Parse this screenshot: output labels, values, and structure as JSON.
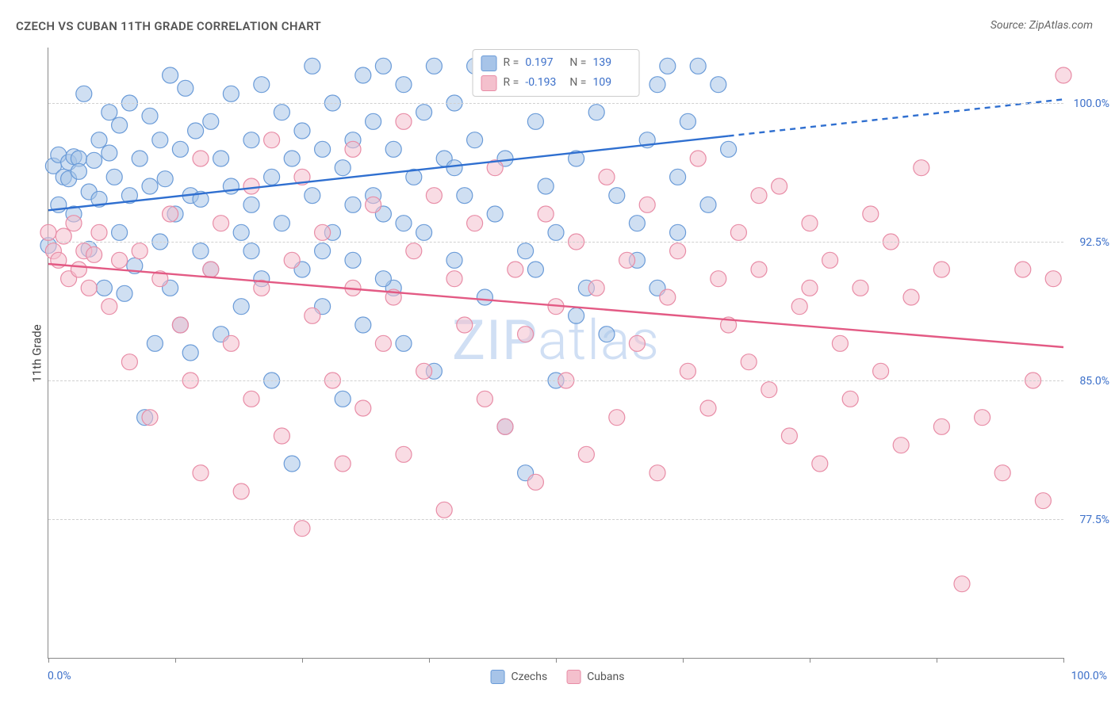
{
  "title": "CZECH VS CUBAN 11TH GRADE CORRELATION CHART",
  "source_label": "Source: ZipAtlas.com",
  "y_axis_label": "11th Grade",
  "watermark_bold": "ZIP",
  "watermark_thin": "atlas",
  "chart": {
    "type": "scatter-with-regression",
    "xlim": [
      0,
      100
    ],
    "ylim": [
      70,
      103
    ],
    "x_min_label": "0.0%",
    "x_max_label": "100.0%",
    "x_ticks": [
      0,
      12.5,
      25,
      37.5,
      50,
      62.5,
      75,
      87.5,
      100
    ],
    "y_grid": [
      {
        "value": 100.0,
        "label": "100.0%"
      },
      {
        "value": 92.5,
        "label": "92.5%"
      },
      {
        "value": 85.0,
        "label": "85.0%"
      },
      {
        "value": 77.5,
        "label": "77.5%"
      }
    ],
    "background_color": "#ffffff",
    "grid_color": "#d0d0d0",
    "axis_color": "#888888",
    "marker_radius": 10,
    "marker_opacity": 0.55,
    "series": [
      {
        "name": "Czechs",
        "fill": "#a7c4e8",
        "stroke": "#6a9bd8",
        "line_color": "#2f6fd0",
        "line_width": 2.4,
        "R": "0.197",
        "N": "139",
        "regression": {
          "x1": 0,
          "y1": 94.2,
          "x2": 100,
          "y2": 100.2,
          "solid_until_x": 67
        },
        "points": [
          [
            0,
            92.3
          ],
          [
            0.5,
            96.6
          ],
          [
            1,
            94.5
          ],
          [
            1,
            97.2
          ],
          [
            1.5,
            96.0
          ],
          [
            2,
            96.8
          ],
          [
            2,
            95.9
          ],
          [
            2.5,
            97.1
          ],
          [
            2.5,
            94.0
          ],
          [
            3,
            97.0
          ],
          [
            3,
            96.3
          ],
          [
            3.5,
            100.5
          ],
          [
            4,
            95.2
          ],
          [
            4,
            92.1
          ],
          [
            4.5,
            96.9
          ],
          [
            5,
            98.0
          ],
          [
            5,
            94.8
          ],
          [
            5.5,
            90.0
          ],
          [
            6,
            97.3
          ],
          [
            6,
            99.5
          ],
          [
            6.5,
            96.0
          ],
          [
            7,
            98.8
          ],
          [
            7,
            93.0
          ],
          [
            7.5,
            89.7
          ],
          [
            8,
            95.0
          ],
          [
            8,
            100.0
          ],
          [
            8.5,
            91.2
          ],
          [
            9,
            97.0
          ],
          [
            9.5,
            83.0
          ],
          [
            10,
            95.5
          ],
          [
            10,
            99.3
          ],
          [
            10.5,
            87.0
          ],
          [
            11,
            98.0
          ],
          [
            11,
            92.5
          ],
          [
            11.5,
            95.9
          ],
          [
            12,
            101.5
          ],
          [
            12,
            90.0
          ],
          [
            12.5,
            94.0
          ],
          [
            13,
            88.0
          ],
          [
            13,
            97.5
          ],
          [
            13.5,
            100.8
          ],
          [
            14,
            86.5
          ],
          [
            14,
            95.0
          ],
          [
            14.5,
            98.5
          ],
          [
            15,
            92.0
          ],
          [
            15,
            94.8
          ],
          [
            16,
            99.0
          ],
          [
            16,
            91.0
          ],
          [
            17,
            97.0
          ],
          [
            17,
            87.5
          ],
          [
            18,
            95.5
          ],
          [
            18,
            100.5
          ],
          [
            19,
            93.0
          ],
          [
            19,
            89.0
          ],
          [
            20,
            98.0
          ],
          [
            20,
            94.5
          ],
          [
            21,
            101.0
          ],
          [
            21,
            90.5
          ],
          [
            22,
            96.0
          ],
          [
            22,
            85.0
          ],
          [
            23,
            99.5
          ],
          [
            23,
            93.5
          ],
          [
            24,
            97.0
          ],
          [
            24,
            80.5
          ],
          [
            25,
            98.5
          ],
          [
            25,
            91.0
          ],
          [
            26,
            102.0
          ],
          [
            26,
            95.0
          ],
          [
            27,
            89.0
          ],
          [
            27,
            97.5
          ],
          [
            28,
            93.0
          ],
          [
            28,
            100.0
          ],
          [
            29,
            84.0
          ],
          [
            29,
            96.5
          ],
          [
            30,
            98.0
          ],
          [
            30,
            91.5
          ],
          [
            31,
            101.5
          ],
          [
            31,
            88.0
          ],
          [
            32,
            95.0
          ],
          [
            32,
            99.0
          ],
          [
            33,
            102.0
          ],
          [
            33,
            94.0
          ],
          [
            34,
            97.5
          ],
          [
            34,
            90.0
          ],
          [
            35,
            101.0
          ],
          [
            35,
            87.0
          ],
          [
            36,
            96.0
          ],
          [
            37,
            99.5
          ],
          [
            37,
            93.0
          ],
          [
            38,
            102.0
          ],
          [
            38,
            85.5
          ],
          [
            39,
            97.0
          ],
          [
            40,
            100.0
          ],
          [
            40,
            91.5
          ],
          [
            41,
            95.0
          ],
          [
            42,
            102.0
          ],
          [
            42,
            98.0
          ],
          [
            43,
            89.5
          ],
          [
            44,
            101.5
          ],
          [
            44,
            94.0
          ],
          [
            45,
            97.0
          ],
          [
            46,
            102.0
          ],
          [
            47,
            92.0
          ],
          [
            47,
            80.0
          ],
          [
            48,
            99.0
          ],
          [
            49,
            95.5
          ],
          [
            50,
            101.0
          ],
          [
            50,
            93.0
          ],
          [
            51,
            102.0
          ],
          [
            52,
            97.0
          ],
          [
            53,
            90.0
          ],
          [
            54,
            99.5
          ],
          [
            55,
            101.5
          ],
          [
            56,
            95.0
          ],
          [
            57,
            102.0
          ],
          [
            58,
            93.5
          ],
          [
            59,
            98.0
          ],
          [
            60,
            101.0
          ],
          [
            61,
            102.0
          ],
          [
            62,
            96.0
          ],
          [
            63,
            99.0
          ],
          [
            64,
            102.0
          ],
          [
            65,
            94.5
          ],
          [
            66,
            101.0
          ],
          [
            67,
            97.5
          ],
          [
            60,
            90.0
          ],
          [
            55,
            87.5
          ],
          [
            50,
            85.0
          ],
          [
            45,
            82.5
          ],
          [
            58,
            91.5
          ],
          [
            62,
            93.0
          ],
          [
            48,
            91.0
          ],
          [
            52,
            88.5
          ],
          [
            35,
            93.5
          ],
          [
            40,
            96.5
          ],
          [
            30,
            94.5
          ],
          [
            33,
            90.5
          ],
          [
            27,
            92.0
          ],
          [
            20,
            92.0
          ]
        ]
      },
      {
        "name": "Cubans",
        "fill": "#f4c0cd",
        "stroke": "#e88ca6",
        "line_color": "#e35a84",
        "line_width": 2.4,
        "R": "-0.193",
        "N": "109",
        "regression": {
          "x1": 0,
          "y1": 91.3,
          "x2": 100,
          "y2": 86.8,
          "solid_until_x": 100
        },
        "points": [
          [
            0,
            93.0
          ],
          [
            0.5,
            92.0
          ],
          [
            1,
            91.5
          ],
          [
            1.5,
            92.8
          ],
          [
            2,
            90.5
          ],
          [
            2.5,
            93.5
          ],
          [
            3,
            91.0
          ],
          [
            3.5,
            92.0
          ],
          [
            4,
            90.0
          ],
          [
            4.5,
            91.8
          ],
          [
            5,
            93.0
          ],
          [
            6,
            89.0
          ],
          [
            7,
            91.5
          ],
          [
            8,
            86.0
          ],
          [
            9,
            92.0
          ],
          [
            10,
            83.0
          ],
          [
            11,
            90.5
          ],
          [
            12,
            94.0
          ],
          [
            13,
            88.0
          ],
          [
            14,
            85.0
          ],
          [
            15,
            97.0
          ],
          [
            15,
            80.0
          ],
          [
            16,
            91.0
          ],
          [
            17,
            93.5
          ],
          [
            18,
            87.0
          ],
          [
            19,
            79.0
          ],
          [
            20,
            95.5
          ],
          [
            20,
            84.0
          ],
          [
            21,
            90.0
          ],
          [
            22,
            98.0
          ],
          [
            23,
            82.0
          ],
          [
            24,
            91.5
          ],
          [
            25,
            77.0
          ],
          [
            25,
            96.0
          ],
          [
            26,
            88.5
          ],
          [
            27,
            93.0
          ],
          [
            28,
            85.0
          ],
          [
            29,
            80.5
          ],
          [
            30,
            97.5
          ],
          [
            30,
            90.0
          ],
          [
            31,
            83.5
          ],
          [
            32,
            94.5
          ],
          [
            33,
            87.0
          ],
          [
            34,
            89.5
          ],
          [
            35,
            99.0
          ],
          [
            35,
            81.0
          ],
          [
            36,
            92.0
          ],
          [
            37,
            85.5
          ],
          [
            38,
            95.0
          ],
          [
            39,
            78.0
          ],
          [
            40,
            90.5
          ],
          [
            41,
            88.0
          ],
          [
            42,
            93.5
          ],
          [
            43,
            84.0
          ],
          [
            44,
            96.5
          ],
          [
            45,
            82.5
          ],
          [
            46,
            91.0
          ],
          [
            47,
            87.5
          ],
          [
            48,
            79.5
          ],
          [
            49,
            94.0
          ],
          [
            50,
            89.0
          ],
          [
            51,
            85.0
          ],
          [
            52,
            92.5
          ],
          [
            53,
            81.0
          ],
          [
            54,
            90.0
          ],
          [
            55,
            96.0
          ],
          [
            56,
            83.0
          ],
          [
            57,
            91.5
          ],
          [
            58,
            87.0
          ],
          [
            59,
            94.5
          ],
          [
            60,
            80.0
          ],
          [
            61,
            89.5
          ],
          [
            62,
            92.0
          ],
          [
            63,
            85.5
          ],
          [
            64,
            97.0
          ],
          [
            65,
            83.5
          ],
          [
            66,
            90.5
          ],
          [
            67,
            88.0
          ],
          [
            68,
            93.0
          ],
          [
            69,
            86.0
          ],
          [
            70,
            91.0
          ],
          [
            71,
            84.5
          ],
          [
            72,
            95.5
          ],
          [
            73,
            82.0
          ],
          [
            74,
            89.0
          ],
          [
            75,
            93.5
          ],
          [
            76,
            80.5
          ],
          [
            77,
            91.5
          ],
          [
            78,
            87.0
          ],
          [
            79,
            84.0
          ],
          [
            80,
            90.0
          ],
          [
            81,
            94.0
          ],
          [
            82,
            85.5
          ],
          [
            83,
            92.5
          ],
          [
            84,
            81.5
          ],
          [
            85,
            89.5
          ],
          [
            86,
            96.5
          ],
          [
            88,
            82.5
          ],
          [
            90,
            74.0
          ],
          [
            92,
            83.0
          ],
          [
            94,
            80.0
          ],
          [
            96,
            91.0
          ],
          [
            97,
            85.0
          ],
          [
            98,
            78.5
          ],
          [
            99,
            90.5
          ],
          [
            100,
            101.5
          ],
          [
            88,
            91.0
          ],
          [
            75,
            90.0
          ],
          [
            70,
            95.0
          ]
        ]
      }
    ],
    "bottom_legend": [
      {
        "label": "Czechs",
        "fill": "#a7c4e8",
        "stroke": "#6a9bd8"
      },
      {
        "label": "Cubans",
        "fill": "#f4c0cd",
        "stroke": "#e88ca6"
      }
    ]
  }
}
